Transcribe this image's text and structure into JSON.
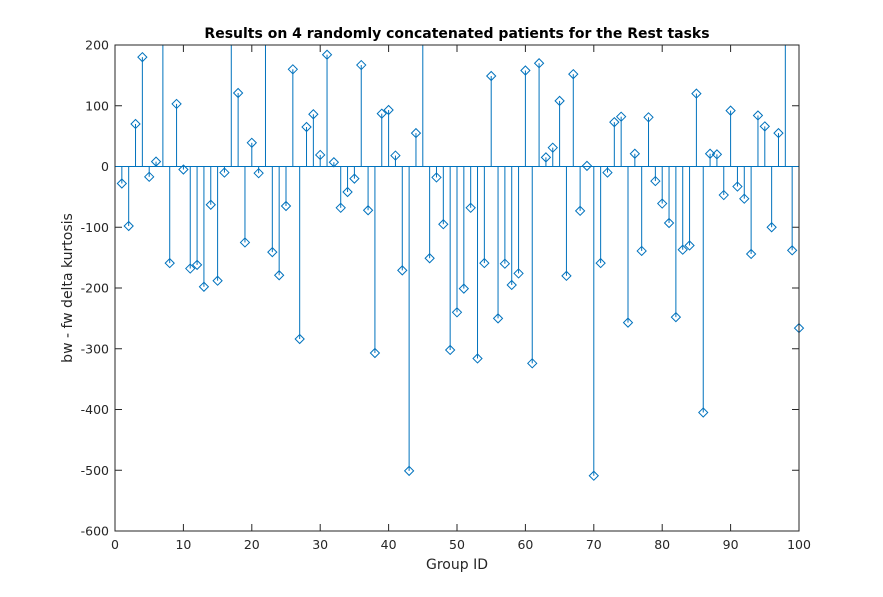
{
  "chart_data": {
    "type": "stem",
    "title": "Results on 4 randomly concatenated patients for the Rest tasks",
    "xlabel": "Group ID",
    "ylabel": "bw - fw delta kurtosis",
    "xlim": [
      0,
      100
    ],
    "ylim": [
      -600,
      200
    ],
    "xticks": [
      0,
      10,
      20,
      30,
      40,
      50,
      60,
      70,
      80,
      90,
      100
    ],
    "yticks": [
      -600,
      -500,
      -400,
      -300,
      -200,
      -100,
      0,
      100,
      200
    ],
    "xtick_labels": [
      "0",
      "10",
      "20",
      "30",
      "40",
      "50",
      "60",
      "70",
      "80",
      "90",
      "100"
    ],
    "ytick_labels": [
      "-600",
      "-500",
      "-400",
      "-300",
      "-200",
      "-100",
      "0",
      "100",
      "200"
    ],
    "grid": false,
    "color": "#0072BD",
    "marker": "diamond",
    "x": [
      1,
      2,
      3,
      4,
      5,
      6,
      7,
      8,
      9,
      10,
      11,
      12,
      13,
      14,
      15,
      16,
      17,
      18,
      19,
      20,
      21,
      22,
      23,
      24,
      25,
      26,
      27,
      28,
      29,
      30,
      31,
      32,
      33,
      34,
      35,
      36,
      37,
      38,
      39,
      40,
      41,
      42,
      43,
      44,
      45,
      46,
      47,
      48,
      49,
      50,
      51,
      52,
      53,
      54,
      55,
      56,
      57,
      58,
      59,
      60,
      61,
      62,
      63,
      64,
      65,
      66,
      67,
      68,
      69,
      70,
      71,
      72,
      73,
      74,
      75,
      76,
      77,
      78,
      79,
      80,
      81,
      82,
      83,
      84,
      85,
      86,
      87,
      88,
      89,
      90,
      91,
      92,
      93,
      94,
      95,
      96,
      97,
      98,
      99,
      100
    ],
    "values": [
      -28,
      -98,
      70,
      180,
      -17,
      8,
      260,
      -159,
      103,
      -5,
      -168,
      -162,
      -198,
      -63,
      -188,
      -10,
      260,
      121,
      -125,
      39,
      -11,
      260,
      -141,
      -179,
      -65,
      160,
      -284,
      65,
      86,
      19,
      184,
      7,
      -68,
      -42,
      -20,
      167,
      -72,
      -307,
      87,
      93,
      18,
      -171,
      -501,
      55,
      260,
      -151,
      -18,
      -95,
      -302,
      -240,
      -201,
      -68,
      -316,
      -159,
      149,
      -250,
      -160,
      -195,
      -176,
      158,
      -324,
      170,
      15,
      31,
      108,
      -180,
      152,
      -73,
      1,
      -509,
      -159,
      -10,
      73,
      82,
      -257,
      21,
      -139,
      81,
      -24,
      -61,
      -93,
      -248,
      -137,
      -130,
      120,
      -405,
      21,
      20,
      -47,
      92,
      -33,
      -53,
      -144,
      84,
      66,
      -100,
      55,
      260,
      -138,
      -266
    ]
  }
}
